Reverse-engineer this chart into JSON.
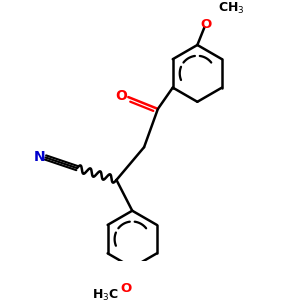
{
  "bg_color": "#ffffff",
  "bond_color": "#000000",
  "n_color": "#0000cd",
  "o_color": "#ff0000",
  "lw": 1.8,
  "figsize": [
    3.0,
    3.0
  ],
  "dpi": 100,
  "xlim": [
    -1.5,
    4.5
  ],
  "ylim": [
    -1.0,
    5.5
  ]
}
